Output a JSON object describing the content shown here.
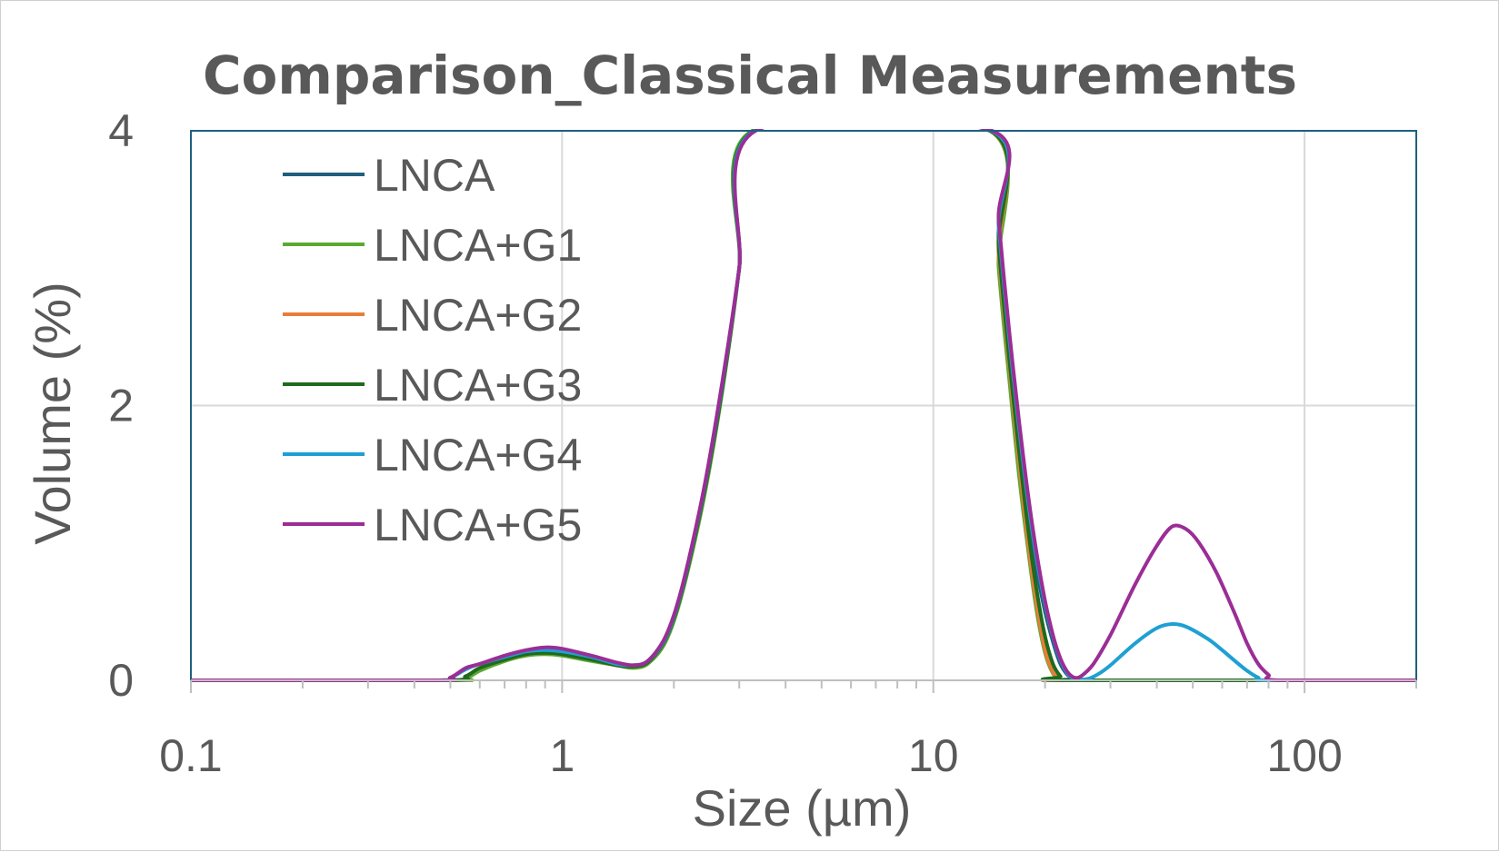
{
  "chart_data": {
    "type": "line",
    "title": "Comparison_Classical Measurements",
    "xlabel": "Size (µm)",
    "ylabel": "Volume (%)",
    "xscale": "log",
    "xlim": [
      0.1,
      200
    ],
    "ylim": [
      0,
      4
    ],
    "x_ticks": [
      {
        "value": 0.1,
        "label": "0.1"
      },
      {
        "value": 1,
        "label": "1"
      },
      {
        "value": 10,
        "label": "10"
      },
      {
        "value": 100,
        "label": "100"
      }
    ],
    "y_ticks": [
      {
        "value": 0,
        "label": "0"
      },
      {
        "value": 2,
        "label": "2"
      },
      {
        "value": 4,
        "label": "4"
      }
    ],
    "grid": true,
    "legend_position": "top-left",
    "series": [
      {
        "name": "LNCA",
        "color": "#1f5f7f",
        "points": [
          [
            0.1,
            0
          ],
          [
            0.45,
            0
          ],
          [
            0.5,
            0
          ],
          [
            0.55,
            0.01
          ],
          [
            0.6,
            0.08
          ],
          [
            0.7,
            0.15
          ],
          [
            0.8,
            0.19
          ],
          [
            0.9,
            0.2
          ],
          [
            1.0,
            0.19
          ],
          [
            1.2,
            0.15
          ],
          [
            1.4,
            0.11
          ],
          [
            1.55,
            0.1
          ],
          [
            1.7,
            0.13
          ],
          [
            1.9,
            0.3
          ],
          [
            2.1,
            0.65
          ],
          [
            2.4,
            1.35
          ],
          [
            2.7,
            2.15
          ],
          [
            3.0,
            3.0
          ],
          [
            3.3,
            4.0
          ],
          [
            14.2,
            4.0
          ],
          [
            15,
            3.2
          ],
          [
            16,
            2.4
          ],
          [
            17,
            1.75
          ],
          [
            18,
            1.2
          ],
          [
            19,
            0.8
          ],
          [
            20,
            0.5
          ],
          [
            21,
            0.28
          ],
          [
            22,
            0.12
          ],
          [
            23,
            0.04
          ],
          [
            24,
            0.01
          ],
          [
            25,
            0
          ],
          [
            200,
            0
          ]
        ]
      },
      {
        "name": "LNCA+G1",
        "color": "#5aaa32",
        "points": [
          [
            0.1,
            0
          ],
          [
            0.5,
            0
          ],
          [
            0.55,
            0.01
          ],
          [
            0.6,
            0.07
          ],
          [
            0.7,
            0.14
          ],
          [
            0.8,
            0.18
          ],
          [
            0.9,
            0.19
          ],
          [
            1.0,
            0.18
          ],
          [
            1.2,
            0.14
          ],
          [
            1.4,
            0.11
          ],
          [
            1.55,
            0.09
          ],
          [
            1.7,
            0.12
          ],
          [
            1.9,
            0.28
          ],
          [
            2.1,
            0.62
          ],
          [
            2.4,
            1.3
          ],
          [
            2.7,
            2.1
          ],
          [
            3.0,
            3.0
          ],
          [
            3.25,
            4.0
          ],
          [
            14.2,
            4.0
          ],
          [
            15,
            3.0
          ],
          [
            16,
            2.2
          ],
          [
            17,
            1.5
          ],
          [
            18,
            0.95
          ],
          [
            19,
            0.5
          ],
          [
            20,
            0.2
          ],
          [
            21,
            0.05
          ],
          [
            22,
            0.01
          ],
          [
            23,
            0
          ],
          [
            200,
            0
          ]
        ]
      },
      {
        "name": "LNCA+G2",
        "color": "#e87d37",
        "points": [
          [
            0.1,
            0
          ],
          [
            0.48,
            0
          ],
          [
            0.55,
            0.03
          ],
          [
            0.6,
            0.09
          ],
          [
            0.7,
            0.15
          ],
          [
            0.8,
            0.19
          ],
          [
            0.9,
            0.2
          ],
          [
            1.0,
            0.19
          ],
          [
            1.2,
            0.15
          ],
          [
            1.4,
            0.11
          ],
          [
            1.55,
            0.1
          ],
          [
            1.7,
            0.13
          ],
          [
            1.9,
            0.3
          ],
          [
            2.1,
            0.64
          ],
          [
            2.4,
            1.33
          ],
          [
            2.7,
            2.12
          ],
          [
            3.0,
            3.0
          ],
          [
            3.3,
            4.0
          ],
          [
            14.2,
            4.0
          ],
          [
            15,
            3.1
          ],
          [
            16,
            2.3
          ],
          [
            17,
            1.6
          ],
          [
            18,
            1.0
          ],
          [
            19,
            0.55
          ],
          [
            20,
            0.22
          ],
          [
            21,
            0.06
          ],
          [
            22,
            0.01
          ],
          [
            23,
            0
          ],
          [
            200,
            0
          ]
        ]
      },
      {
        "name": "LNCA+G3",
        "color": "#1e6b1e",
        "points": [
          [
            0.1,
            0
          ],
          [
            0.48,
            0
          ],
          [
            0.55,
            0.03
          ],
          [
            0.6,
            0.09
          ],
          [
            0.7,
            0.15
          ],
          [
            0.8,
            0.19
          ],
          [
            0.9,
            0.2
          ],
          [
            1.0,
            0.19
          ],
          [
            1.2,
            0.15
          ],
          [
            1.4,
            0.11
          ],
          [
            1.55,
            0.1
          ],
          [
            1.7,
            0.13
          ],
          [
            1.9,
            0.3
          ],
          [
            2.1,
            0.64
          ],
          [
            2.4,
            1.33
          ],
          [
            2.7,
            2.12
          ],
          [
            3.0,
            3.0
          ],
          [
            3.28,
            4.0
          ],
          [
            14.2,
            4.0
          ],
          [
            15,
            3.15
          ],
          [
            16,
            2.35
          ],
          [
            17,
            1.68
          ],
          [
            18,
            1.1
          ],
          [
            19,
            0.65
          ],
          [
            20,
            0.32
          ],
          [
            21,
            0.12
          ],
          [
            22,
            0.03
          ],
          [
            23,
            0
          ],
          [
            200,
            0
          ]
        ]
      },
      {
        "name": "LNCA+G4",
        "color": "#1ea0d2",
        "points": [
          [
            0.1,
            0
          ],
          [
            0.45,
            0
          ],
          [
            0.5,
            0.02
          ],
          [
            0.55,
            0.08
          ],
          [
            0.6,
            0.12
          ],
          [
            0.7,
            0.17
          ],
          [
            0.8,
            0.21
          ],
          [
            0.9,
            0.22
          ],
          [
            1.0,
            0.21
          ],
          [
            1.2,
            0.17
          ],
          [
            1.4,
            0.12
          ],
          [
            1.55,
            0.11
          ],
          [
            1.7,
            0.14
          ],
          [
            1.9,
            0.31
          ],
          [
            2.1,
            0.66
          ],
          [
            2.4,
            1.36
          ],
          [
            2.7,
            2.16
          ],
          [
            3.0,
            3.0
          ],
          [
            3.3,
            4.0
          ],
          [
            14.3,
            4.0
          ],
          [
            15,
            3.3
          ],
          [
            16,
            2.5
          ],
          [
            17,
            1.85
          ],
          [
            18,
            1.3
          ],
          [
            19,
            0.88
          ],
          [
            20,
            0.56
          ],
          [
            21,
            0.32
          ],
          [
            22,
            0.15
          ],
          [
            23,
            0.05
          ],
          [
            24,
            0.01
          ],
          [
            26,
            0.01
          ],
          [
            28,
            0.05
          ],
          [
            30,
            0.11
          ],
          [
            35,
            0.27
          ],
          [
            40,
            0.38
          ],
          [
            44,
            0.41
          ],
          [
            48,
            0.39
          ],
          [
            55,
            0.3
          ],
          [
            60,
            0.22
          ],
          [
            65,
            0.14
          ],
          [
            70,
            0.07
          ],
          [
            75,
            0.02
          ],
          [
            80,
            0
          ],
          [
            200,
            0
          ]
        ]
      },
      {
        "name": "LNCA+G5",
        "color": "#9b2d96",
        "points": [
          [
            0.1,
            0
          ],
          [
            0.45,
            0
          ],
          [
            0.5,
            0.02
          ],
          [
            0.55,
            0.09
          ],
          [
            0.6,
            0.12
          ],
          [
            0.7,
            0.18
          ],
          [
            0.8,
            0.22
          ],
          [
            0.9,
            0.24
          ],
          [
            1.0,
            0.23
          ],
          [
            1.2,
            0.18
          ],
          [
            1.4,
            0.13
          ],
          [
            1.55,
            0.11
          ],
          [
            1.7,
            0.14
          ],
          [
            1.9,
            0.32
          ],
          [
            2.1,
            0.67
          ],
          [
            2.4,
            1.37
          ],
          [
            2.7,
            2.17
          ],
          [
            3.0,
            3.0
          ],
          [
            3.32,
            4.0
          ],
          [
            14.4,
            4.0
          ],
          [
            15,
            3.35
          ],
          [
            16,
            2.55
          ],
          [
            17,
            1.9
          ],
          [
            18,
            1.35
          ],
          [
            19,
            0.92
          ],
          [
            20,
            0.58
          ],
          [
            21,
            0.33
          ],
          [
            22,
            0.16
          ],
          [
            23,
            0.06
          ],
          [
            24,
            0.02
          ],
          [
            25,
            0.03
          ],
          [
            27,
            0.12
          ],
          [
            30,
            0.33
          ],
          [
            35,
            0.7
          ],
          [
            40,
            0.98
          ],
          [
            44,
            1.12
          ],
          [
            48,
            1.1
          ],
          [
            52,
            1.0
          ],
          [
            58,
            0.78
          ],
          [
            65,
            0.48
          ],
          [
            70,
            0.27
          ],
          [
            75,
            0.12
          ],
          [
            80,
            0.04
          ],
          [
            85,
            0
          ],
          [
            200,
            0
          ]
        ]
      }
    ]
  }
}
